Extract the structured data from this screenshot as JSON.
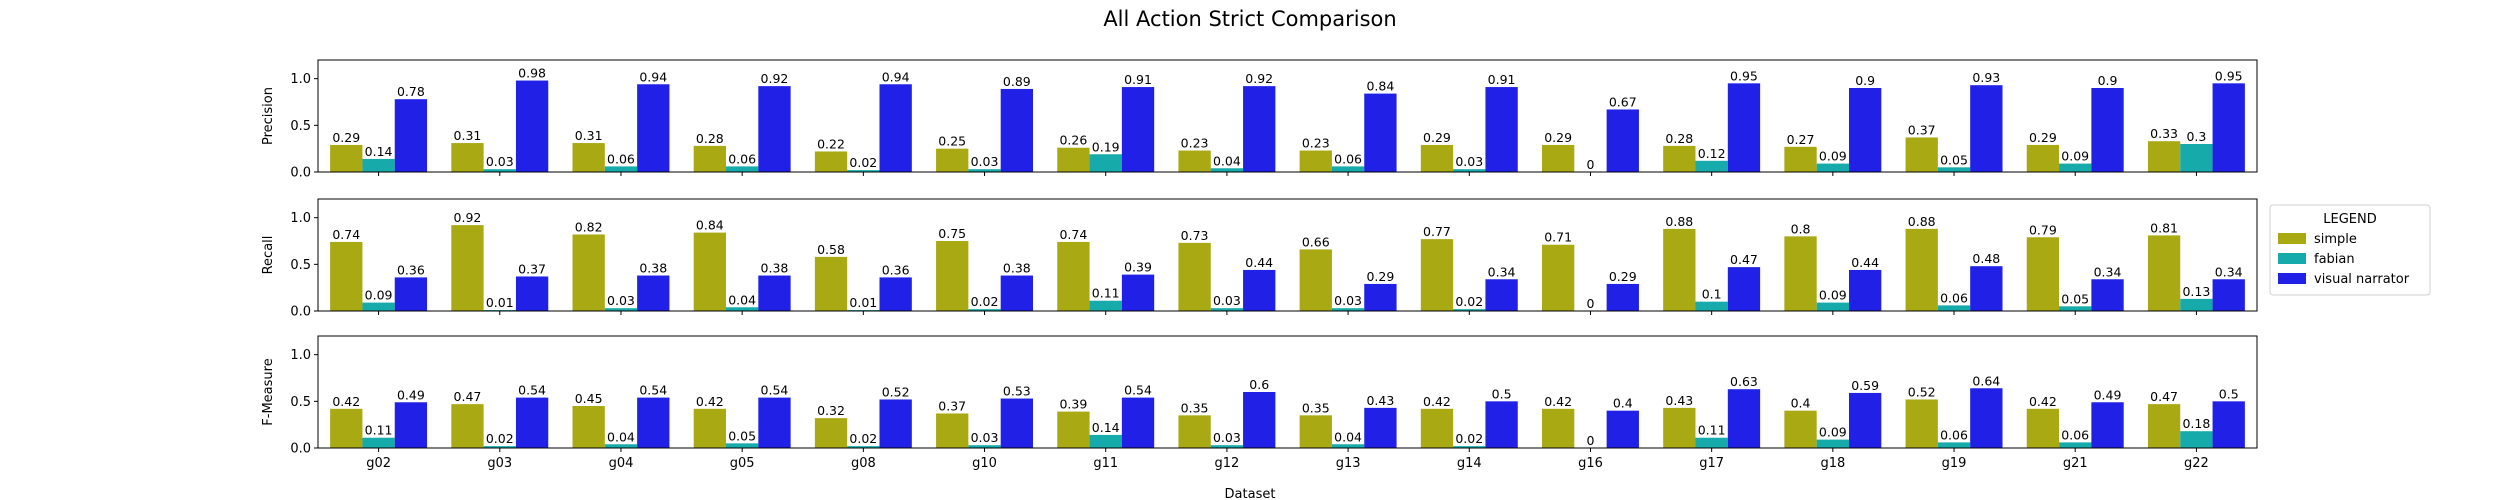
{
  "figure": {
    "title": "All Action Strict Comparison",
    "xlabel": "Dataset"
  },
  "legend": {
    "title": "LEGEND",
    "entries": [
      {
        "name": "simple",
        "color": "#a9a914"
      },
      {
        "name": "fabian",
        "color": "#17aaaa"
      },
      {
        "name": "visual narrator",
        "color": "#2020e6"
      }
    ]
  },
  "chart_data": [
    {
      "type": "bar",
      "ylabel": "Precision",
      "ylim": [
        0,
        1.2
      ],
      "yticks": [
        "0.0",
        "0.5",
        "1.0"
      ],
      "categories": [
        "g02",
        "g03",
        "g04",
        "g05",
        "g08",
        "g10",
        "g11",
        "g12",
        "g13",
        "g14",
        "g16",
        "g17",
        "g18",
        "g19",
        "g21",
        "g22"
      ],
      "series": [
        {
          "name": "simple",
          "color": "#a9a914",
          "values": [
            0.29,
            0.31,
            0.31,
            0.28,
            0.22,
            0.25,
            0.26,
            0.23,
            0.23,
            0.29,
            0.29,
            0.28,
            0.27,
            0.37,
            0.29,
            0.33
          ]
        },
        {
          "name": "fabian",
          "color": "#17aaaa",
          "values": [
            0.14,
            0.03,
            0.06,
            0.06,
            0.02,
            0.03,
            0.19,
            0.04,
            0.06,
            0.03,
            0,
            0.12,
            0.09,
            0.05,
            0.09,
            0.3
          ]
        },
        {
          "name": "visual narrator",
          "color": "#2020e6",
          "values": [
            0.78,
            0.98,
            0.94,
            0.92,
            0.94,
            0.89,
            0.91,
            0.92,
            0.84,
            0.91,
            0.67,
            0.95,
            0.9,
            0.93,
            0.9,
            0.95
          ]
        }
      ]
    },
    {
      "type": "bar",
      "ylabel": "Recall",
      "ylim": [
        0,
        1.2
      ],
      "yticks": [
        "0.0",
        "0.5",
        "1.0"
      ],
      "categories": [
        "g02",
        "g03",
        "g04",
        "g05",
        "g08",
        "g10",
        "g11",
        "g12",
        "g13",
        "g14",
        "g16",
        "g17",
        "g18",
        "g19",
        "g21",
        "g22"
      ],
      "series": [
        {
          "name": "simple",
          "color": "#a9a914",
          "values": [
            0.74,
            0.92,
            0.82,
            0.84,
            0.58,
            0.75,
            0.74,
            0.73,
            0.66,
            0.77,
            0.71,
            0.88,
            0.8,
            0.88,
            0.79,
            0.81
          ]
        },
        {
          "name": "fabian",
          "color": "#17aaaa",
          "values": [
            0.09,
            0.01,
            0.03,
            0.04,
            0.01,
            0.02,
            0.11,
            0.03,
            0.03,
            0.02,
            0,
            0.1,
            0.09,
            0.06,
            0.05,
            0.13
          ]
        },
        {
          "name": "visual narrator",
          "color": "#2020e6",
          "values": [
            0.36,
            0.37,
            0.38,
            0.38,
            0.36,
            0.38,
            0.39,
            0.44,
            0.29,
            0.34,
            0.29,
            0.47,
            0.44,
            0.48,
            0.34,
            0.34
          ]
        }
      ]
    },
    {
      "type": "bar",
      "ylabel": "F-Measure",
      "ylim": [
        0,
        1.2
      ],
      "yticks": [
        "0.0",
        "0.5",
        "1.0"
      ],
      "categories": [
        "g02",
        "g03",
        "g04",
        "g05",
        "g08",
        "g10",
        "g11",
        "g12",
        "g13",
        "g14",
        "g16",
        "g17",
        "g18",
        "g19",
        "g21",
        "g22"
      ],
      "series": [
        {
          "name": "simple",
          "color": "#a9a914",
          "values": [
            0.42,
            0.47,
            0.45,
            0.42,
            0.32,
            0.37,
            0.39,
            0.35,
            0.35,
            0.42,
            0.42,
            0.43,
            0.4,
            0.52,
            0.42,
            0.47
          ]
        },
        {
          "name": "fabian",
          "color": "#17aaaa",
          "values": [
            0.11,
            0.02,
            0.04,
            0.05,
            0.02,
            0.03,
            0.14,
            0.03,
            0.04,
            0.02,
            0,
            0.11,
            0.09,
            0.06,
            0.06,
            0.18
          ]
        },
        {
          "name": "visual narrator",
          "color": "#2020e6",
          "values": [
            0.49,
            0.54,
            0.54,
            0.54,
            0.52,
            0.53,
            0.54,
            0.6,
            0.43,
            0.5,
            0.4,
            0.63,
            0.59,
            0.64,
            0.49,
            0.5
          ]
        }
      ]
    }
  ]
}
